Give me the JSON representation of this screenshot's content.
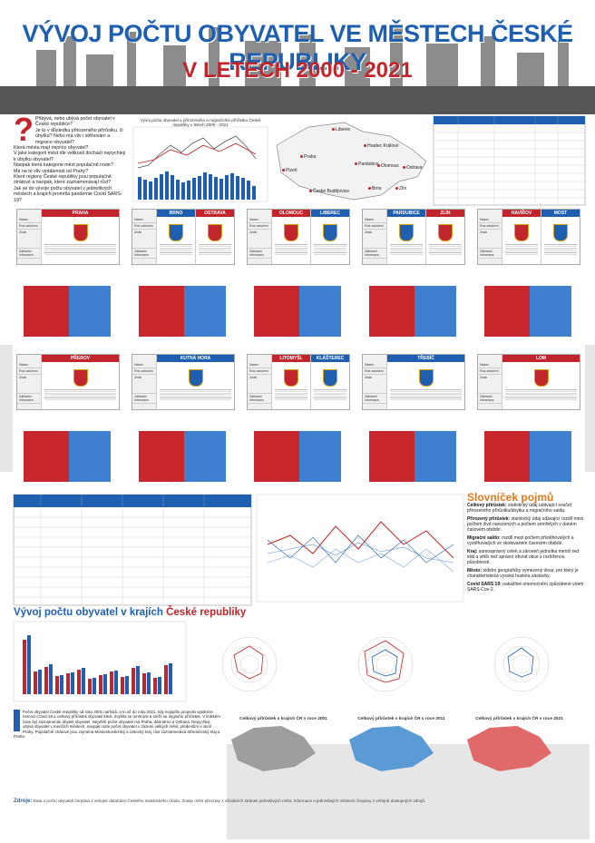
{
  "header": {
    "title": "VÝVOJ POČTU OBYVATEL VE MĚSTECH ČESKÉ REPUBLIKY",
    "subtitle": "V LETECH 2000 - 2021"
  },
  "questions": [
    "Přibývá, nebo ubývá počet obyvatel v České republice?",
    "Je to v důsledku přirozeného přírůstku, či úbytku? Nebo má vliv i stěhování a migrace obyvatel?",
    "Která města mají nejvíce obyvatel?",
    "V jaké kategorii měst dle velikosti dochází nejrychleji k úbytku obyvatel?",
    "Naopak která kategorie měst populačně roste?",
    "Má na to vliv vzdálenost od Prahy?",
    "Které regiony České republiky jsou populačně ztrátové a naopak, které zaznamenávají růst?",
    "Jak se do vývoje počtu obyvatel v jednotlivých městech a krajích promítla pandemie Covid SARS-19?"
  ],
  "chart_title": "Vývoj počtu obyvatel a přirozeného a migračního přírůstku České republiky v letech 2000 - 2021",
  "map_cities": [
    "Liberec",
    "Praha",
    "Hradec Králové",
    "Pardubice",
    "Plzeň",
    "Olomouc",
    "Ostrava",
    "Brno",
    "Zlín",
    "České Budějovice"
  ],
  "card_labels": [
    "Název",
    "Rok založení",
    "Znak",
    "Základní informace"
  ],
  "card_rows": [
    [
      [
        "PRAHA"
      ],
      [
        "BRNO",
        "OSTRAVA"
      ],
      [
        "OLOMOUC",
        "LIBEREC"
      ],
      [
        "PARDUBICE",
        "ZLÍN"
      ],
      [
        "HAVÍŘOV",
        "MOST"
      ]
    ],
    [
      [
        "PŘEROV"
      ],
      [
        "KUTNÁ HORA"
      ],
      [
        "LITOMYŠL",
        "KLÁŠTEREC"
      ],
      [
        "TŘEBÍČ"
      ],
      [
        "LOM"
      ]
    ]
  ],
  "glossary": {
    "title": "Slovníček",
    "title_accent": "pojmů",
    "items": [
      {
        "term": "Celkový přírůstek:",
        "text": "statistický údaj udávající součet přirozeného přírůstku/úbytku a migračního salda."
      },
      {
        "term": "Přirozený přírůstek:",
        "text": "statistický údaj udávající rozdíl mezi počtem živě narozených a počtem zemřelých v daném časovém období."
      },
      {
        "term": "Migrační saldo:",
        "text": "rozdíl mezi počtem přistěhovalých a vystěhovalých ve sledovaném časovém období."
      },
      {
        "term": "Kraj:",
        "text": "samosprávný celek a zároveň jednotka menší než stát a větší než správní obvod obce s rozšířenou působností."
      },
      {
        "term": "Město:",
        "text": "sídelní geograficky vymezený útvar, pro který je charakteristická vysoká hustota zástavby."
      },
      {
        "term": "Covid SARS 19:",
        "text": "nakažlivé onemocnění způsobené virem SARS-Cov-2."
      }
    ]
  },
  "regions": {
    "title": "Vývoj počtu obyvatel v krajích",
    "title_accent": "České republiky"
  },
  "map_titles": [
    "Celkový přírůstek v krajích ČR v roce 2001",
    "Celkový přírůstek v krajích ČR v roce 2011",
    "Celkový přírůstek v krajích ČR v roce 2021"
  ],
  "summary": "Počet obyvatel České republiky od roku 2001 narůstá, a to až do roku 2021, kdy nejspíše projevila epidemie nemoci Covid-19 a celkový přírůstek obyvatel klesl. Zvýšila se úmrtnost a snížil se migrační přírůstek. V krátkém čase byl zaznamenán úbytek obyvatel. Největší počet obyvatel má Praha, dále Brno a Ostrava. Nejrychleji ubývá obyvatel v menších městech, naopak roste počet obyvatel v zázemí velkých měst, především v okolí Prahy. Populačně ztrátové jsou zejména Moravskoslezský a Ústecký kraj, růst zaznamenává Středočeský kraj a Praha.",
  "sources": {
    "label": "Zdroje:",
    "text": "Data o počtu obyvatel čerpána z veřejné databáze Českého statistického úřadu. Znaky měst převzaty z oficiálních stránek jednotlivých měst. Informace o jednotlivých městech čerpány z veřejně dostupných zdrojů."
  }
}
